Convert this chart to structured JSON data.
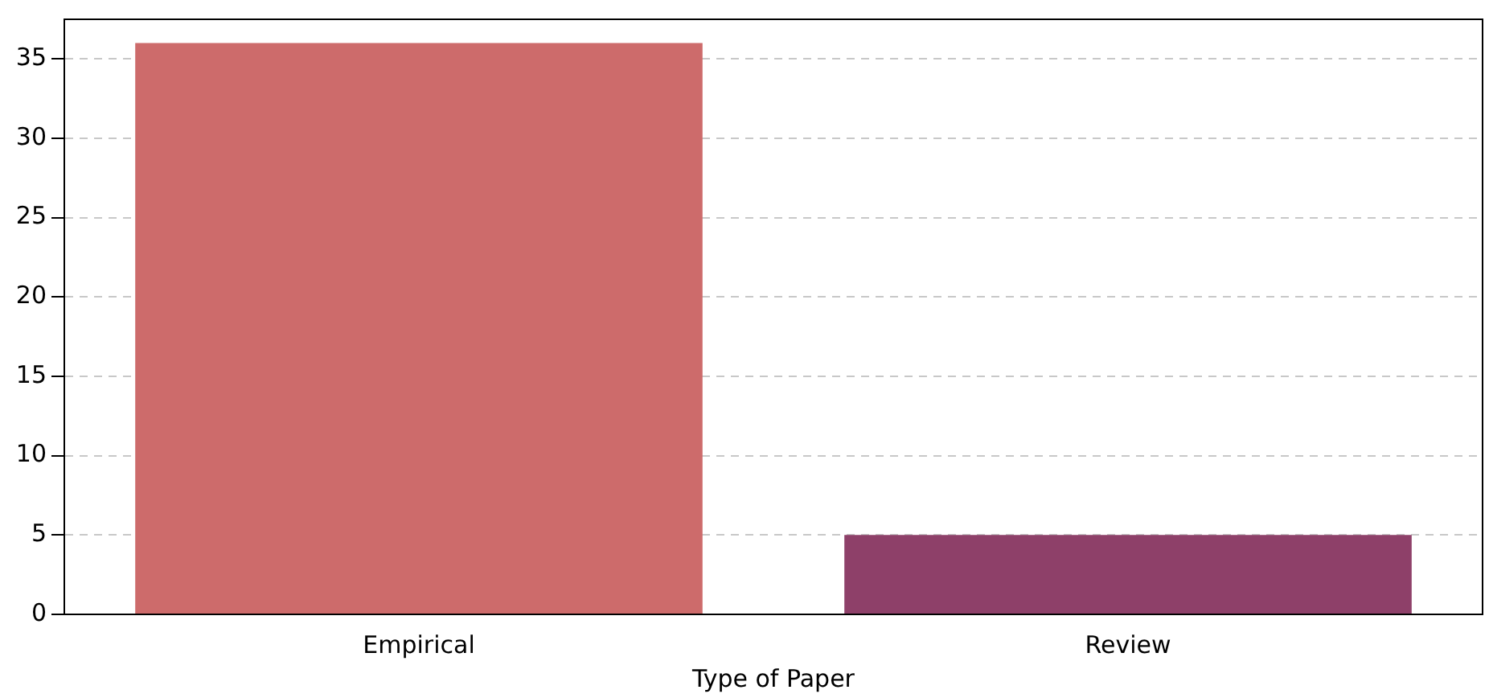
{
  "chart_data": {
    "type": "bar",
    "xlabel": "Type of Paper",
    "categories": [
      "Empirical",
      "Review"
    ],
    "values": [
      36,
      5
    ],
    "colors": [
      "#cd6b6b",
      "#8e4069"
    ],
    "ylim": [
      0,
      37.5
    ],
    "yticks": [
      0,
      5,
      10,
      15,
      20,
      25,
      30,
      35
    ],
    "grid": "y"
  }
}
